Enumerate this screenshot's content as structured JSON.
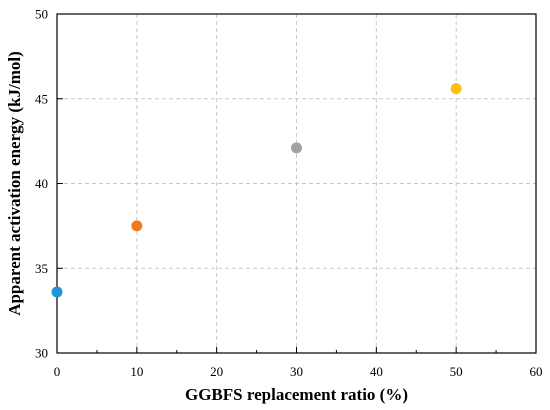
{
  "chart_data": {
    "type": "scatter",
    "title": "",
    "xlabel": "GGBFS replacement ratio (%)",
    "ylabel": "Apparent activation energy (kJ/mol)",
    "xlim": [
      0,
      60
    ],
    "ylim": [
      30,
      50
    ],
    "x_ticks": [
      0,
      10,
      20,
      30,
      40,
      50,
      60
    ],
    "y_ticks": [
      30,
      35,
      40,
      45,
      50
    ],
    "x_minor_ticks": [
      5,
      15,
      25,
      35,
      45,
      55
    ],
    "grid": true,
    "legend": "none",
    "points": [
      {
        "x": 0,
        "y": 33.6,
        "color": "#1e96d6"
      },
      {
        "x": 10,
        "y": 37.5,
        "color": "#f07b1f"
      },
      {
        "x": 30,
        "y": 42.1,
        "color": "#a2a2a2"
      },
      {
        "x": 50,
        "y": 45.6,
        "color": "#ffc10a"
      }
    ]
  }
}
